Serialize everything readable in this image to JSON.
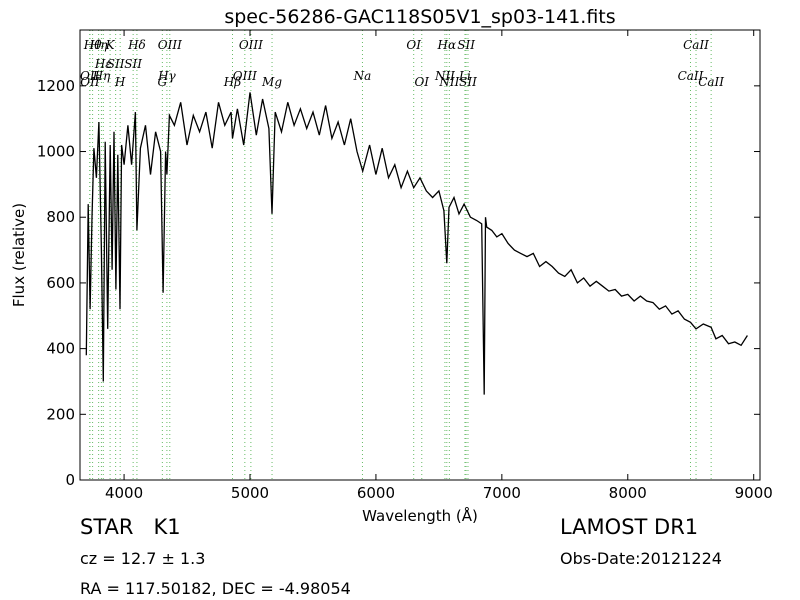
{
  "title": "spec-56286-GAC118S05V1_sp03-141.fits",
  "footer": {
    "class_label": "STAR",
    "subclass_label": "K1",
    "survey": "LAMOST DR1",
    "cz_prefix": "cz = 12.7",
    "cz_pm": "±",
    "cz_err": "1.3",
    "obs_date": "Obs-Date:20121224",
    "coords": "RA = 117.50182, DEC = -4.98054"
  },
  "chart_data": {
    "type": "line",
    "xlabel": "Wavelength (Å)",
    "ylabel": "Flux (relative)",
    "xlim": [
      3650,
      9050
    ],
    "ylim": [
      0,
      1370
    ],
    "xticks": [
      4000,
      5000,
      6000,
      7000,
      8000,
      9000
    ],
    "yticks": [
      0,
      200,
      400,
      600,
      800,
      1000,
      1200
    ],
    "grid": false,
    "line_color": "#000000",
    "marker_color": "#66bb66",
    "series": [
      {
        "x": [
          3700,
          3715,
          3730,
          3745,
          3760,
          3780,
          3800,
          3820,
          3835,
          3850,
          3870,
          3890,
          3905,
          3920,
          3935,
          3950,
          3968,
          3980,
          4000,
          4030,
          4060,
          4090,
          4102,
          4130,
          4170,
          4210,
          4250,
          4290,
          4310,
          4330,
          4340,
          4360,
          4400,
          4450,
          4500,
          4550,
          4600,
          4650,
          4700,
          4750,
          4800,
          4850,
          4861,
          4900,
          4950,
          5000,
          5050,
          5100,
          5150,
          5175,
          5200,
          5250,
          5300,
          5350,
          5400,
          5450,
          5500,
          5550,
          5600,
          5650,
          5700,
          5750,
          5800,
          5850,
          5895,
          5950,
          6000,
          6050,
          6100,
          6150,
          6200,
          6250,
          6300,
          6350,
          6400,
          6450,
          6500,
          6540,
          6563,
          6580,
          6620,
          6660,
          6700,
          6750,
          6800,
          6840,
          6860,
          6870,
          6880,
          6920,
          6960,
          7000,
          7050,
          7100,
          7150,
          7200,
          7250,
          7300,
          7350,
          7400,
          7450,
          7500,
          7550,
          7600,
          7650,
          7700,
          7750,
          7800,
          7850,
          7900,
          7950,
          8000,
          8050,
          8100,
          8150,
          8200,
          8250,
          8300,
          8350,
          8400,
          8450,
          8498,
          8542,
          8600,
          8662,
          8700,
          8750,
          8800,
          8850,
          8900,
          8950
        ],
        "y": [
          380,
          840,
          520,
          800,
          1010,
          920,
          1090,
          700,
          300,
          1030,
          460,
          1020,
          640,
          1060,
          580,
          990,
          520,
          1020,
          960,
          1080,
          960,
          1120,
          760,
          1010,
          1080,
          930,
          1060,
          1000,
          570,
          1000,
          930,
          1110,
          1080,
          1150,
          1020,
          1110,
          1060,
          1120,
          1010,
          1150,
          1080,
          1120,
          1040,
          1130,
          1020,
          1180,
          1050,
          1160,
          1070,
          810,
          1120,
          1060,
          1150,
          1080,
          1130,
          1070,
          1120,
          1050,
          1140,
          1040,
          1090,
          1020,
          1100,
          1000,
          940,
          1020,
          930,
          1010,
          920,
          960,
          890,
          940,
          890,
          920,
          880,
          860,
          880,
          820,
          660,
          830,
          860,
          810,
          840,
          800,
          790,
          780,
          260,
          800,
          770,
          760,
          740,
          750,
          720,
          700,
          690,
          680,
          690,
          650,
          665,
          650,
          630,
          620,
          640,
          600,
          615,
          590,
          605,
          590,
          575,
          580,
          560,
          565,
          545,
          560,
          545,
          540,
          520,
          530,
          505,
          515,
          490,
          480,
          460,
          475,
          465,
          430,
          440,
          415,
          420,
          410,
          440
        ]
      }
    ],
    "line_markers": [
      {
        "x": 3727,
        "label": "OII",
        "row": 2
      },
      {
        "x": 3729,
        "label": "OII",
        "row": 3
      },
      {
        "x": 3750,
        "label": "Hθ",
        "row": 0
      },
      {
        "x": 3798,
        "label": "Hη",
        "row": 0
      },
      {
        "x": 3820,
        "label": "Hη",
        "row": 2
      },
      {
        "x": 3835,
        "label": "Hε",
        "row": 1
      },
      {
        "x": 3889,
        "label": "K",
        "row": 0
      },
      {
        "x": 3933,
        "label": "SII",
        "row": 1
      },
      {
        "x": 3969,
        "label": "H",
        "row": 3
      },
      {
        "x": 4072,
        "label": "SII",
        "row": 1
      },
      {
        "x": 4102,
        "label": "Hδ",
        "row": 0
      },
      {
        "x": 4304,
        "label": "G",
        "row": 3
      },
      {
        "x": 4340,
        "label": "Hγ",
        "row": 2
      },
      {
        "x": 4363,
        "label": "OIII",
        "row": 0
      },
      {
        "x": 4861,
        "label": "Hβ",
        "row": 3
      },
      {
        "x": 4959,
        "label": "OIII",
        "row": 2
      },
      {
        "x": 5007,
        "label": "OIII",
        "row": 0
      },
      {
        "x": 5175,
        "label": "Mg",
        "row": 3
      },
      {
        "x": 5893,
        "label": "Na",
        "row": 2
      },
      {
        "x": 6300,
        "label": "OI",
        "row": 0
      },
      {
        "x": 6364,
        "label": "OI",
        "row": 3
      },
      {
        "x": 6548,
        "label": "NII",
        "row": 2
      },
      {
        "x": 6563,
        "label": "Hα",
        "row": 0
      },
      {
        "x": 6583,
        "label": "NII",
        "row": 3
      },
      {
        "x": 6707,
        "label": "Li",
        "row": 2
      },
      {
        "x": 6716,
        "label": "SII",
        "row": 0
      },
      {
        "x": 6731,
        "label": "SII",
        "row": 3
      },
      {
        "x": 8498,
        "label": "CaII",
        "row": 2
      },
      {
        "x": 8542,
        "label": "CaII",
        "row": 0
      },
      {
        "x": 8662,
        "label": "CaII",
        "row": 3
      }
    ]
  }
}
